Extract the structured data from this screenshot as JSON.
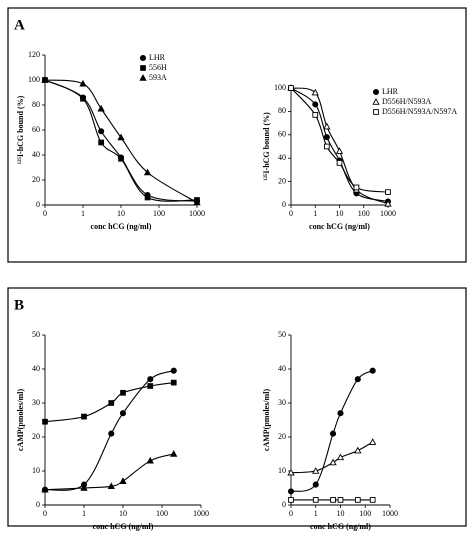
{
  "panel_labels": [
    "A",
    "B"
  ],
  "chart_data": [
    {
      "type": "line",
      "xscale": "log",
      "xlabel": "conc hCG (ng/ml)",
      "ylabel": "¹²⁵I-hCG bound (%)",
      "x": [
        0,
        1,
        3,
        10,
        50,
        1000
      ],
      "xlim": [
        0,
        1000
      ],
      "xticks": [
        0,
        1,
        10,
        100,
        1000
      ],
      "ylim": [
        0,
        120
      ],
      "yticks": [
        0,
        20,
        40,
        60,
        80,
        100,
        120
      ],
      "legend": "upper right",
      "series": [
        {
          "name": "LHR",
          "color": "#000000",
          "marker": "circle",
          "filled": true,
          "values": [
            100,
            86,
            59,
            38,
            8,
            3
          ]
        },
        {
          "name": "556H",
          "color": "#000000",
          "marker": "square",
          "filled": true,
          "values": [
            100,
            85,
            50,
            37,
            6,
            4
          ]
        },
        {
          "name": "593A",
          "color": "#000000",
          "marker": "triangle",
          "filled": true,
          "values": [
            100,
            97,
            77,
            54,
            26,
            2
          ]
        }
      ]
    },
    {
      "type": "line",
      "xscale": "log",
      "xlabel": "conc hCG (ng/ml)",
      "ylabel": "¹²⁵I-hCG bound (%)",
      "x": [
        0,
        1,
        3,
        10,
        50,
        1000
      ],
      "xlim": [
        0,
        1000
      ],
      "xticks": [
        0,
        1,
        10,
        100,
        1000
      ],
      "ylim": [
        0,
        100
      ],
      "yticks": [
        0,
        20,
        40,
        60,
        80,
        100
      ],
      "legend": "upper right",
      "series": [
        {
          "name": "LHR",
          "color": "#000000",
          "marker": "circle",
          "filled": true,
          "values": [
            100,
            86,
            58,
            38,
            10,
            3
          ]
        },
        {
          "name": "D556H/N593A",
          "color": "#000000",
          "marker": "triangle",
          "filled": false,
          "values": [
            100,
            96,
            67,
            46,
            13,
            1
          ]
        },
        {
          "name": "D556H/N593A/N597A",
          "color": "#000000",
          "marker": "square",
          "filled": false,
          "values": [
            100,
            77,
            50,
            36,
            15,
            11
          ]
        }
      ]
    },
    {
      "type": "line",
      "xscale": "log",
      "xlabel": "conc hCG (ng/ml)",
      "ylabel": "cAMP(pmoles/ml)",
      "x": [
        0,
        1,
        5,
        10,
        50,
        200
      ],
      "xlim": [
        0,
        1000
      ],
      "xticks": [
        0,
        1,
        10,
        100,
        1000
      ],
      "ylim": [
        0,
        50
      ],
      "yticks": [
        0,
        10,
        20,
        30,
        40,
        50
      ],
      "series": [
        {
          "color": "#000000",
          "marker": "circle",
          "filled": true,
          "values": [
            4.5,
            6,
            21,
            27,
            37,
            39.5
          ]
        },
        {
          "color": "#000000",
          "marker": "square",
          "filled": true,
          "values": [
            24.5,
            26,
            30,
            33,
            35,
            36
          ]
        },
        {
          "color": "#000000",
          "marker": "triangle",
          "filled": true,
          "values": [
            4.5,
            5,
            5.5,
            7,
            13,
            15
          ]
        }
      ]
    },
    {
      "type": "line",
      "xscale": "log",
      "xlabel": "conc hCG (ng/ml)",
      "ylabel": "cAMP(pmoles/ml)",
      "x": [
        0,
        1,
        5,
        10,
        50,
        200
      ],
      "xlim": [
        0,
        1000
      ],
      "xticks": [
        0,
        1,
        10,
        100,
        1000
      ],
      "ylim": [
        0,
        50
      ],
      "yticks": [
        0,
        10,
        20,
        30,
        40,
        50
      ],
      "series": [
        {
          "color": "#000000",
          "marker": "circle",
          "filled": true,
          "values": [
            4,
            6,
            21,
            27,
            37,
            39.5
          ]
        },
        {
          "color": "#000000",
          "marker": "triangle",
          "filled": false,
          "values": [
            9.5,
            10,
            12.5,
            14,
            16,
            18.5
          ]
        },
        {
          "color": "#000000",
          "marker": "square",
          "filled": false,
          "values": [
            1.5,
            1.5,
            1.5,
            1.5,
            1.5,
            1.5
          ]
        }
      ]
    }
  ]
}
